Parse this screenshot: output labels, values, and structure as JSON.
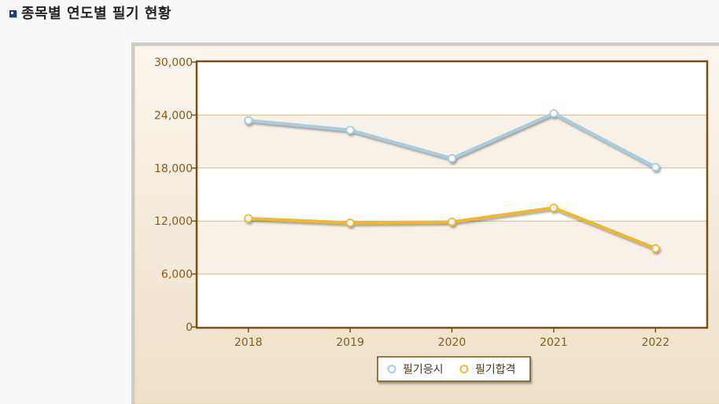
{
  "page": {
    "title": "종목별 연도별 필기 현황"
  },
  "chart_data": {
    "type": "line",
    "title": "",
    "xlabel": "",
    "ylabel": "",
    "x": [
      "2018",
      "2019",
      "2020",
      "2021",
      "2022"
    ],
    "ylim": [
      0,
      30000
    ],
    "yticks": [
      "0",
      "6,000",
      "12,000",
      "18,000",
      "24,000",
      "30,000"
    ],
    "ytick_values": [
      0,
      6000,
      12000,
      18000,
      24000,
      30000
    ],
    "grid": true,
    "legend_position": "bottom",
    "series": [
      {
        "name": "필기응시",
        "color": "#a8cce0",
        "values": [
          23400,
          22300,
          19100,
          24200,
          18100
        ]
      },
      {
        "name": "필기합격",
        "color": "#f0b82a",
        "values": [
          12300,
          11800,
          11900,
          13500,
          8900
        ]
      }
    ]
  }
}
